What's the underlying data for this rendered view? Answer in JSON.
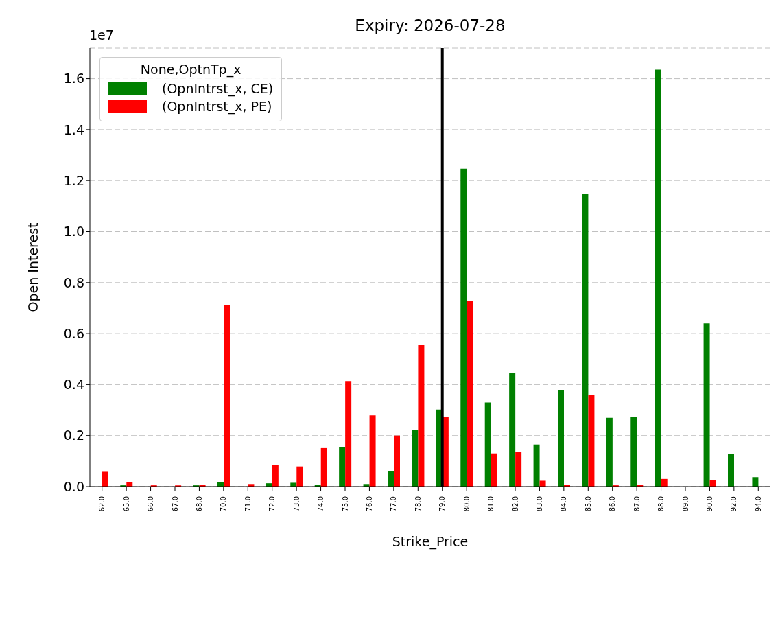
{
  "chart_data": {
    "type": "bar",
    "title": "Expiry: 2026-07-28",
    "xlabel": "Strike_Price",
    "ylabel": "Open Interest",
    "legend_title": "None,OptnTp_x",
    "annotations": [
      "1e7"
    ],
    "categories": [
      "62.0",
      "65.0",
      "66.0",
      "67.0",
      "68.0",
      "70.0",
      "71.0",
      "72.0",
      "73.0",
      "74.0",
      "75.0",
      "76.0",
      "77.0",
      "78.0",
      "79.0",
      "80.0",
      "81.0",
      "82.0",
      "83.0",
      "84.0",
      "85.0",
      "86.0",
      "87.0",
      "88.0",
      "89.0",
      "90.0",
      "92.0",
      "94.0"
    ],
    "series": [
      {
        "name": "(OpnIntrst_x, CE)",
        "color": "#008000",
        "values": [
          0,
          0.005,
          0,
          0,
          0.005,
          0.018,
          0,
          0.013,
          0.015,
          0.008,
          0.156,
          0.01,
          0.06,
          0.223,
          0.302,
          1.247,
          0.33,
          0.447,
          0.165,
          0.379,
          1.147,
          0.27,
          0.272,
          1.635,
          0,
          0.64,
          0.128,
          0.037
        ]
      },
      {
        "name": "(OpnIntrst_x, PE)",
        "color": "#ff0000",
        "values": [
          0.058,
          0.018,
          0.005,
          0.005,
          0.008,
          0.712,
          0.01,
          0.086,
          0.079,
          0.151,
          0.414,
          0.279,
          0.2,
          0.556,
          0.274,
          0.728,
          0.13,
          0.135,
          0.023,
          0.008,
          0.36,
          0.005,
          0.008,
          0.03,
          0,
          0.025,
          0,
          0
        ]
      }
    ],
    "ylim": [
      0,
      1.72
    ],
    "yticks": [
      {
        "value": 0,
        "label": "0.0"
      },
      {
        "value": 0.2,
        "label": "0.2"
      },
      {
        "value": 0.4,
        "label": "0.4"
      },
      {
        "value": 0.6,
        "label": "0.6"
      },
      {
        "value": 0.8,
        "label": "0.8"
      },
      {
        "value": 1.0,
        "label": "1.0"
      },
      {
        "value": 1.2,
        "label": "1.2"
      },
      {
        "value": 1.4,
        "label": "1.4"
      },
      {
        "value": 1.6,
        "label": "1.6"
      }
    ],
    "grid": "y",
    "legend": "top left",
    "ref_lines": [
      {
        "axis": "x",
        "value": "79.0",
        "color": "#000000"
      }
    ]
  }
}
